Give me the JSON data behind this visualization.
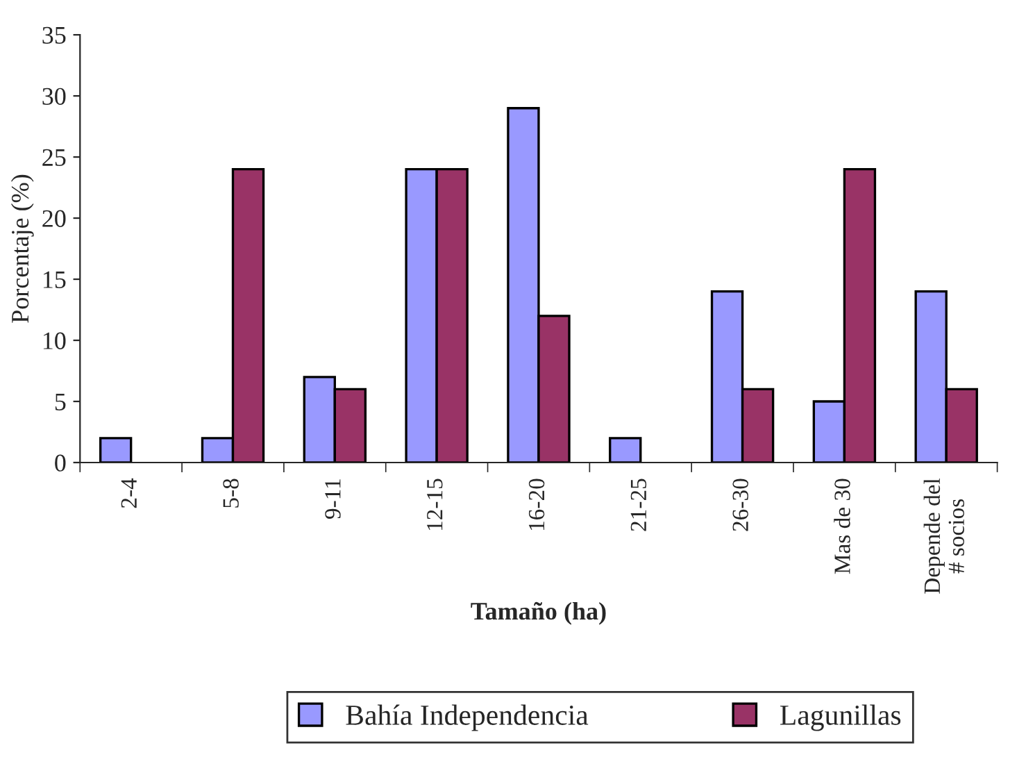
{
  "chart_data": {
    "type": "bar",
    "xlabel": "Tamaño (ha)",
    "ylabel": "Porcentaje (%)",
    "categories": [
      "2-4",
      "5-8",
      "9-11",
      "12-15",
      "16-20",
      "21-25",
      "26-30",
      "Mas de 30",
      "Depende del\n# socios"
    ],
    "series": [
      {
        "name": "Bahía Independencia",
        "color": "#9999ff",
        "values": [
          2,
          2,
          7,
          24,
          29,
          2,
          14,
          5,
          14
        ]
      },
      {
        "name": "Lagunillas",
        "color": "#993366",
        "values": [
          null,
          24,
          6,
          24,
          12,
          null,
          6,
          24,
          6
        ]
      }
    ],
    "ylim": [
      0,
      35
    ],
    "yticks": [
      0,
      5,
      10,
      15,
      20,
      25,
      30,
      35
    ],
    "grid": false,
    "legend": "bottom"
  }
}
